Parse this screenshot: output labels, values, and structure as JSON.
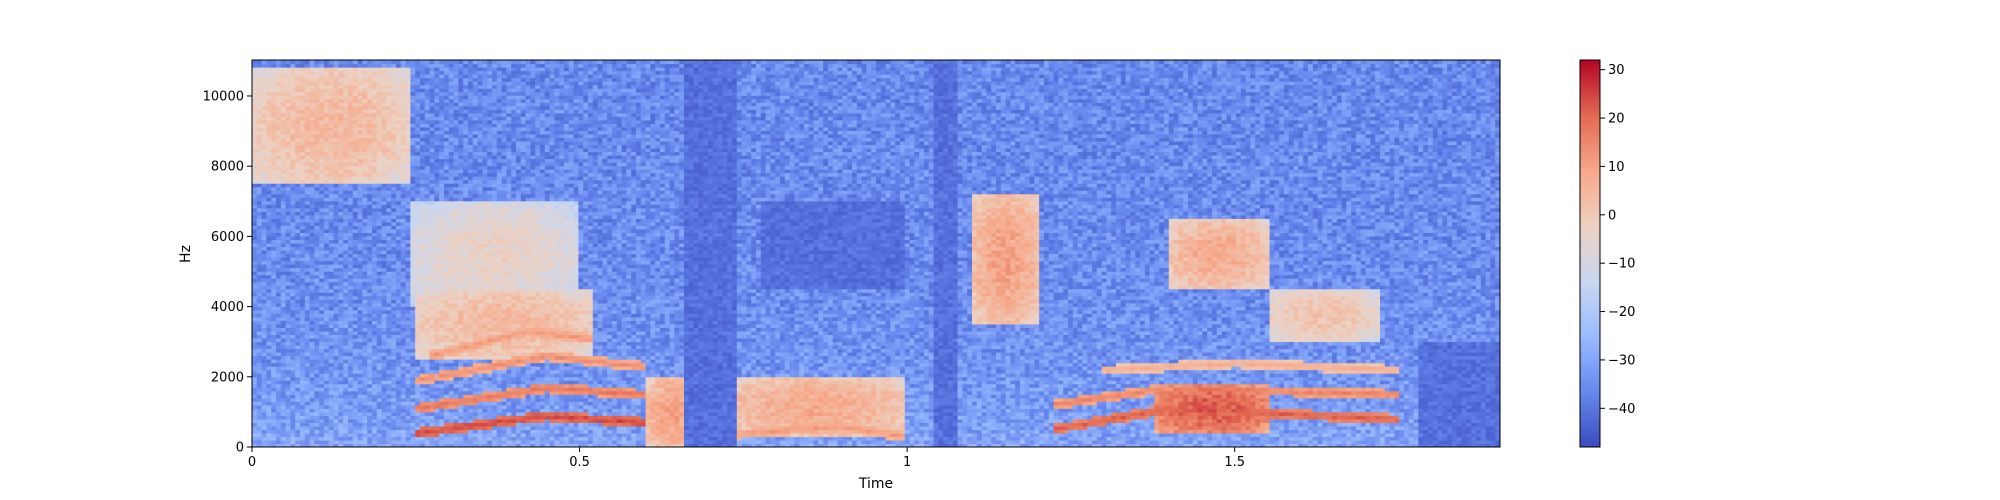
{
  "chart_data": {
    "type": "heatmap",
    "title": "",
    "xlabel": "Time",
    "ylabel": "Hz",
    "xlim": [
      0,
      1.905
    ],
    "ylim": [
      0,
      11025
    ],
    "xticks": [
      {
        "value": 0,
        "label": "0"
      },
      {
        "value": 0.5,
        "label": "0.5"
      },
      {
        "value": 1,
        "label": "1"
      },
      {
        "value": 1.5,
        "label": "1.5"
      }
    ],
    "yticks": [
      {
        "value": 0,
        "label": "0"
      },
      {
        "value": 2000,
        "label": "2000"
      },
      {
        "value": 4000,
        "label": "4000"
      },
      {
        "value": 6000,
        "label": "6000"
      },
      {
        "value": 8000,
        "label": "8000"
      },
      {
        "value": 10000,
        "label": "10000"
      }
    ],
    "colorbar": {
      "min": -48,
      "max": 32,
      "ticks": [
        {
          "value": 30,
          "label": "30"
        },
        {
          "value": 20,
          "label": "20"
        },
        {
          "value": 10,
          "label": "10"
        },
        {
          "value": 0,
          "label": "0"
        },
        {
          "value": -10,
          "label": "−10"
        },
        {
          "value": -20,
          "label": "−20"
        },
        {
          "value": -30,
          "label": "−30"
        },
        {
          "value": -40,
          "label": "−40"
        }
      ]
    },
    "colormap": [
      "#3b4cc0",
      "#6788ee",
      "#9abbff",
      "#c9d7f0",
      "#edd1c2",
      "#f7a889",
      "#e26952",
      "#b40426"
    ],
    "grid": false,
    "legend": "none",
    "energy_regions": [
      {
        "t": [
          0.0,
          0.24
        ],
        "f": [
          7500,
          10800
        ],
        "db": 5
      },
      {
        "t": [
          0.24,
          0.5
        ],
        "f": [
          4000,
          7000
        ],
        "db": -3
      },
      {
        "t": [
          0.25,
          0.52
        ],
        "f": [
          2500,
          4500
        ],
        "db": 5
      },
      {
        "t": [
          0.6,
          0.68
        ],
        "f": [
          0,
          2000
        ],
        "db": 10
      },
      {
        "t": [
          0.72,
          1.0
        ],
        "f": [
          300,
          2000
        ],
        "db": 8
      },
      {
        "t": [
          1.1,
          1.2
        ],
        "f": [
          3500,
          7200
        ],
        "db": 10
      },
      {
        "t": [
          1.38,
          1.55
        ],
        "f": [
          400,
          1800
        ],
        "db": 22
      },
      {
        "t": [
          1.4,
          1.55
        ],
        "f": [
          4500,
          6500
        ],
        "db": 8
      },
      {
        "t": [
          1.55,
          1.72
        ],
        "f": [
          3000,
          4500
        ],
        "db": 2
      }
    ],
    "harmonic_tracks": [
      {
        "t": [
          0.25,
          0.45,
          0.6
        ],
        "f": [
          400,
          900,
          700
        ],
        "db": 25
      },
      {
        "t": [
          0.25,
          0.45,
          0.6
        ],
        "f": [
          1100,
          1700,
          1500
        ],
        "db": 18
      },
      {
        "t": [
          0.25,
          0.45,
          0.6
        ],
        "f": [
          1900,
          2600,
          2300
        ],
        "db": 14
      },
      {
        "t": [
          0.27,
          0.42,
          0.52
        ],
        "f": [
          2600,
          3300,
          3100
        ],
        "db": 12
      },
      {
        "t": [
          0.72,
          0.9,
          1.0
        ],
        "f": [
          350,
          600,
          300
        ],
        "db": 12
      },
      {
        "t": [
          1.22,
          1.4,
          1.75
        ],
        "f": [
          500,
          1100,
          800
        ],
        "db": 22
      },
      {
        "t": [
          1.22,
          1.4,
          1.75
        ],
        "f": [
          1200,
          1700,
          1500
        ],
        "db": 16
      },
      {
        "t": [
          1.3,
          1.5,
          1.75
        ],
        "f": [
          2200,
          2400,
          2200
        ],
        "db": 8
      }
    ],
    "quiet_regions": [
      {
        "t": [
          0.66,
          0.74
        ],
        "f": [
          0,
          11025
        ]
      },
      {
        "t": [
          1.04,
          1.08
        ],
        "f": [
          0,
          11025
        ]
      },
      {
        "t": [
          0.78,
          1.0
        ],
        "f": [
          4500,
          7000
        ]
      },
      {
        "t": [
          1.78,
          1.905
        ],
        "f": [
          0,
          3000
        ]
      }
    ]
  }
}
